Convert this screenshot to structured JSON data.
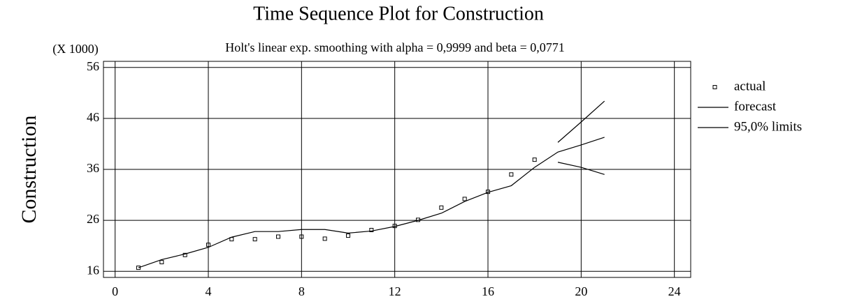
{
  "chart_data": {
    "type": "line",
    "title": "Time Sequence Plot for Construction",
    "subtitle": "Holt's linear exp. smoothing with alpha = 0,9999 and beta = 0,0771",
    "y_label": "Construction",
    "y_multiplier": "(X 1000)",
    "xlim": [
      -0.5,
      24.7
    ],
    "ylim": [
      14.8,
      57.2
    ],
    "xticks": [
      0,
      4,
      8,
      12,
      16,
      20,
      24
    ],
    "yticks": [
      16,
      26,
      36,
      46,
      56
    ],
    "grid": true,
    "legend": "right",
    "series": [
      {
        "name": "actual",
        "style": "points",
        "color": "#000000",
        "x": [
          1,
          2,
          3,
          4,
          5,
          6,
          7,
          8,
          9,
          10,
          11,
          12,
          13,
          14,
          15,
          16,
          17,
          18
        ],
        "values": [
          16.7,
          17.8,
          19.2,
          21.2,
          22.3,
          22.3,
          22.8,
          22.8,
          22.4,
          23.0,
          24.1,
          24.9,
          26.1,
          28.5,
          30.2,
          31.6,
          35.0,
          37.9
        ]
      },
      {
        "name": "forecast",
        "style": "line",
        "color": "#000000",
        "x": [
          1,
          2,
          3,
          4,
          5,
          6,
          7,
          8,
          9,
          10,
          11,
          12,
          13,
          14,
          15,
          16,
          17,
          18,
          19,
          20,
          21
        ],
        "values": [
          16.7,
          18.3,
          19.4,
          20.7,
          22.7,
          23.8,
          23.8,
          24.2,
          24.2,
          23.5,
          23.9,
          24.8,
          26.0,
          27.4,
          29.7,
          31.5,
          32.8,
          36.4,
          39.4,
          40.8,
          42.3
        ]
      },
      {
        "name": "95,0% limits",
        "style": "band-lines",
        "color": "#000000",
        "x": [
          19,
          20,
          21
        ],
        "upper": [
          41.3,
          45.3,
          49.4
        ],
        "lower": [
          37.4,
          36.4,
          35.0
        ]
      }
    ]
  }
}
